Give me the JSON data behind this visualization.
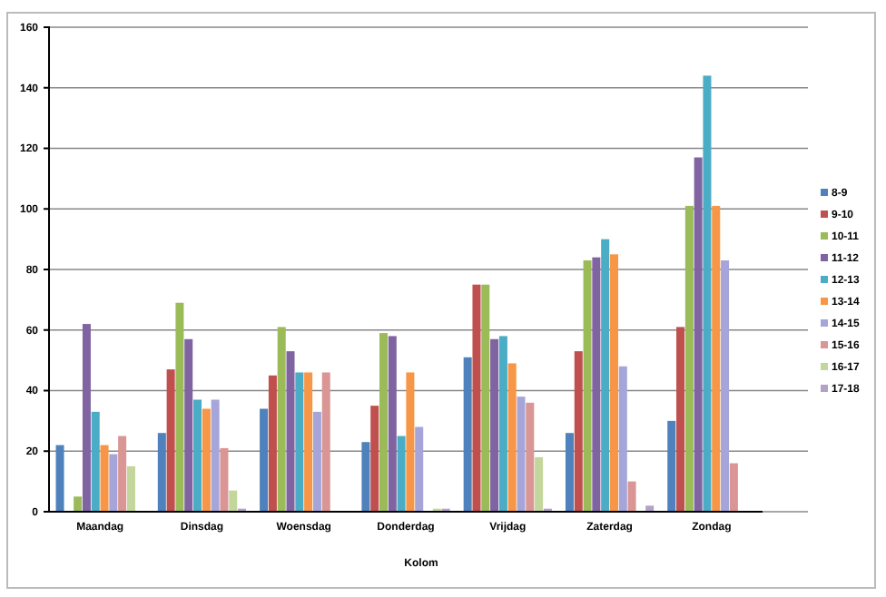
{
  "chart_data": {
    "type": "bar",
    "xlabel": "Kolom",
    "categories": [
      "Maandag",
      "Dinsdag",
      "Woensdag",
      "Donderdag",
      "Vrijdag",
      "Zaterdag",
      "Zondag"
    ],
    "ylim": [
      0,
      160
    ],
    "yticks": [
      0,
      20,
      40,
      60,
      80,
      100,
      120,
      140,
      160
    ],
    "grid": "y",
    "legend": "right",
    "series": [
      {
        "name": "8-9",
        "color": "#4f81bd",
        "values": [
          22,
          26,
          34,
          23,
          51,
          26,
          30
        ]
      },
      {
        "name": "9-10",
        "color": "#c0504d",
        "values": [
          0,
          47,
          45,
          35,
          75,
          53,
          61
        ]
      },
      {
        "name": "10-11",
        "color": "#9bbb59",
        "values": [
          5,
          69,
          61,
          59,
          75,
          83,
          101
        ]
      },
      {
        "name": "11-12",
        "color": "#8064a2",
        "values": [
          62,
          57,
          53,
          58,
          57,
          84,
          117
        ]
      },
      {
        "name": "12-13",
        "color": "#4bacc6",
        "values": [
          33,
          37,
          46,
          25,
          58,
          90,
          144
        ]
      },
      {
        "name": "13-14",
        "color": "#f79646",
        "values": [
          22,
          34,
          46,
          46,
          49,
          85,
          101
        ]
      },
      {
        "name": "14-15",
        "color": "#a5a5d9",
        "values": [
          19,
          37,
          33,
          28,
          38,
          48,
          83
        ]
      },
      {
        "name": "15-16",
        "color": "#d99694",
        "values": [
          25,
          21,
          46,
          0,
          36,
          10,
          16
        ]
      },
      {
        "name": "16-17",
        "color": "#c3d69b",
        "values": [
          15,
          7,
          0,
          1,
          18,
          0,
          0
        ]
      },
      {
        "name": "17-18",
        "color": "#b3a2c7",
        "values": [
          0,
          1,
          0,
          1,
          1,
          2,
          0
        ]
      }
    ]
  }
}
